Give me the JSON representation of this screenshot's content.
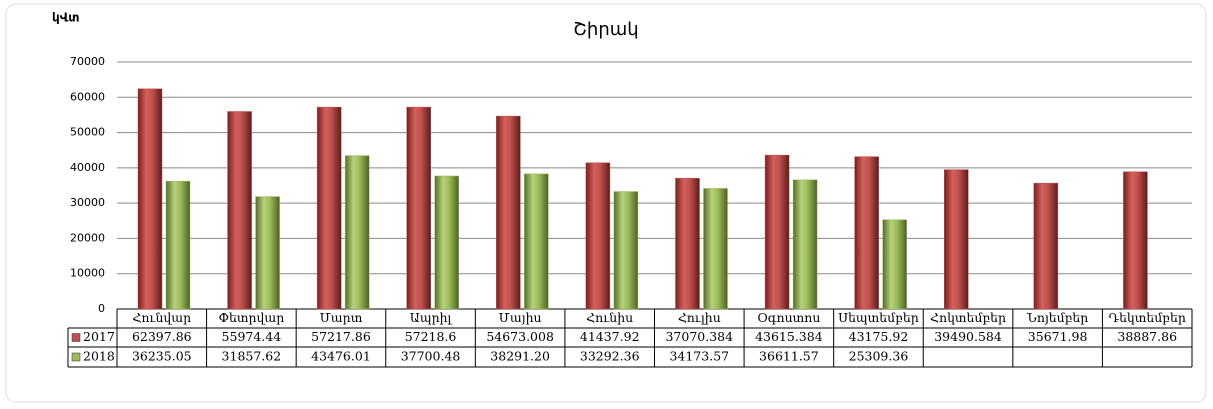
{
  "chart_data": {
    "type": "bar",
    "title": "Շիրակ",
    "y_axis_label": "կՎտ",
    "categories": [
      "Հունվար",
      "Փետրվար",
      "Մարտ",
      "Ապրիլ",
      "Մայիս",
      "Հունիս",
      "Հուլիս",
      "Օգոստոս",
      "Սեպտեմբեր",
      "Հոկտեմբեր",
      "Նոյեմբեր",
      "Դեկտեմբեր"
    ],
    "series": [
      {
        "name": "2017",
        "color": "#c0504d",
        "values": [
          62397.86,
          55974.44,
          57217.86,
          57218.6,
          54673.008,
          41437.92,
          37070.384,
          43615.384,
          43175.92,
          39490.584,
          35671.98,
          38887.86
        ]
      },
      {
        "name": "2018",
        "color": "#9bbb59",
        "values": [
          36235.05,
          31857.62,
          43476.01,
          37700.48,
          38291.2,
          33292.36,
          34173.57,
          36611.57,
          25309.36,
          null,
          null,
          null
        ],
        "value_labels": [
          "36235.05",
          "31857.62",
          "43476.01",
          "37700.48",
          "38291.20",
          "33292.36",
          "34173.57",
          "36611.57",
          "25309.36",
          null,
          null,
          null
        ]
      }
    ],
    "ylim": [
      0,
      70000
    ],
    "yticks": [
      0,
      10000,
      20000,
      30000,
      40000,
      50000,
      60000,
      70000
    ],
    "grid": true,
    "legend": "data-table"
  }
}
